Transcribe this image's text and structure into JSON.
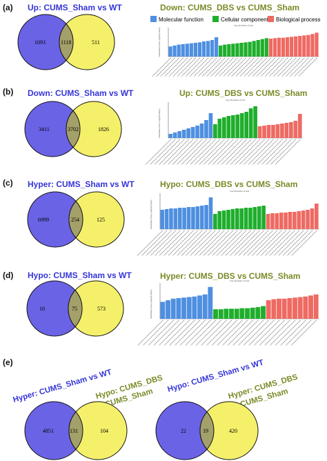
{
  "colors": {
    "venn_left": "#6b63e6",
    "venn_right": "#f5f06a",
    "venn_overlap": "#a4a06a",
    "molecular_function": "#4f8fe0",
    "cellular_component": "#1fae2c",
    "biological_process": "#ee6a63",
    "title_blue": "#3535d8",
    "title_green": "#7a8a27"
  },
  "legend": {
    "molecular_function": "Molecular function",
    "cellular_component": "Cellular component",
    "biological_process": "Biological process"
  },
  "panels": [
    {
      "label": "(a)",
      "left_title": "Up: CUMS_Sham vs WT",
      "right_title": "Down: CUMS_DBS vs CUMS_Sham",
      "venn": {
        "left": "1093",
        "overlap": "1118",
        "right": "511"
      }
    },
    {
      "label": "(b)",
      "left_title": "Down: CUMS_Sham vs WT",
      "right_title": "Up: CUMS_DBS vs CUMS_Sham",
      "venn": {
        "left": "3411",
        "overlap": "3702",
        "right": "1826"
      }
    },
    {
      "label": "(c)",
      "left_title": "Hyper: CUMS_Sham vs WT",
      "right_title": "Hypo: CUMS_DBS vs CUMS_Sham",
      "venn": {
        "left": "6999",
        "overlap": "254",
        "right": "125"
      }
    },
    {
      "label": "(d)",
      "left_title": "Hypo: CUMS_Sham vs WT",
      "right_title": "Hyper: CUMS_DBS vs CUMS_Sham",
      "venn": {
        "left": "10",
        "overlap": "75",
        "right": "573"
      }
    }
  ],
  "panel_e": {
    "label": "(e)",
    "left": {
      "blue_title": "Hyper: CUMS_Sham vs WT",
      "green_title_line1": "Hypo: CUMS_DBS",
      "green_title_line2": "vs CUMS_Sham",
      "venn": {
        "left": "4851",
        "overlap": "131",
        "right": "104"
      }
    },
    "right": {
      "blue_title": "Hypo: CUMS_Sham vs WT",
      "green_title_line1": "Hyper: CUMS_DBS",
      "green_title_line2": "vs CUMS_Sham",
      "venn": {
        "left": "22",
        "overlap": "19",
        "right": "420"
      }
    }
  },
  "chart_data": [
    {
      "type": "bar",
      "title": "Top 20 terms of GO",
      "ylabel": "Enrichment Score (-log10(Pvalue))",
      "series": [
        {
          "name": "Molecular function",
          "values": [
            2.2,
            2.4,
            2.6,
            2.7,
            2.8,
            2.9,
            3.0,
            3.1,
            3.3,
            3.4,
            3.6,
            4.2
          ]
        },
        {
          "name": "Cellular component",
          "values": [
            2.4,
            2.6,
            2.7,
            2.8,
            2.9,
            3.0,
            3.1,
            3.2,
            3.4,
            3.6,
            3.8,
            4.0
          ]
        },
        {
          "name": "Biological process",
          "values": [
            3.9,
            4.0,
            4.1,
            4.1,
            4.2,
            4.3,
            4.4,
            4.5,
            4.6,
            4.7,
            4.9,
            5.2
          ]
        }
      ],
      "ylim": [
        0,
        6
      ]
    },
    {
      "type": "bar",
      "title": "Top 20 terms of GO",
      "ylabel": "Enrichment Score (-log10(Pvalue))",
      "series": [
        {
          "name": "Molecular function",
          "values": [
            0.6,
            0.8,
            1.0,
            1.2,
            1.4,
            1.6,
            1.8,
            2.1,
            2.6,
            3.6
          ]
        },
        {
          "name": "Cellular component",
          "values": [
            2.0,
            2.8,
            3.0,
            3.2,
            3.3,
            3.4,
            3.6,
            3.8,
            4.3,
            4.6
          ]
        },
        {
          "name": "Biological process",
          "values": [
            1.7,
            1.8,
            1.9,
            1.9,
            2.0,
            2.1,
            2.2,
            2.3,
            2.5,
            3.5
          ]
        }
      ],
      "ylim": [
        0,
        5
      ]
    },
    {
      "type": "bar",
      "title": "Top 20 terms of GO",
      "ylabel": "Enrichment Score (-log10(Pvalue))",
      "series": [
        {
          "name": "Molecular function",
          "values": [
            2.8,
            2.9,
            3.0,
            3.0,
            3.1,
            3.1,
            3.2,
            3.2,
            3.3,
            3.4,
            3.5,
            4.6
          ]
        },
        {
          "name": "Cellular component",
          "values": [
            2.2,
            2.6,
            2.7,
            2.8,
            2.9,
            3.0,
            3.0,
            3.1,
            3.1,
            3.2,
            3.3,
            3.4
          ]
        },
        {
          "name": "Biological process",
          "values": [
            2.2,
            2.3,
            2.3,
            2.4,
            2.4,
            2.5,
            2.5,
            2.6,
            2.7,
            2.8,
            3.0,
            3.7
          ]
        }
      ],
      "ylim": [
        0,
        5
      ]
    },
    {
      "type": "bar",
      "title": "Top 20 terms of GO",
      "ylabel": "Enrichment Score (-log10(Pvalue))",
      "series": [
        {
          "name": "Molecular function",
          "values": [
            3.2,
            3.5,
            3.8,
            3.9,
            4.0,
            4.1,
            4.2,
            4.4,
            4.6,
            6.0
          ]
        },
        {
          "name": "Cellular component",
          "values": [
            1.8,
            1.8,
            1.9,
            1.9,
            1.9,
            2.0,
            2.0,
            2.1,
            2.2,
            2.4
          ]
        },
        {
          "name": "Biological process",
          "values": [
            3.5,
            3.7,
            3.8,
            3.8,
            3.9,
            4.0,
            4.1,
            4.2,
            4.4,
            4.6
          ]
        }
      ],
      "ylim": [
        0,
        6.5
      ]
    }
  ]
}
